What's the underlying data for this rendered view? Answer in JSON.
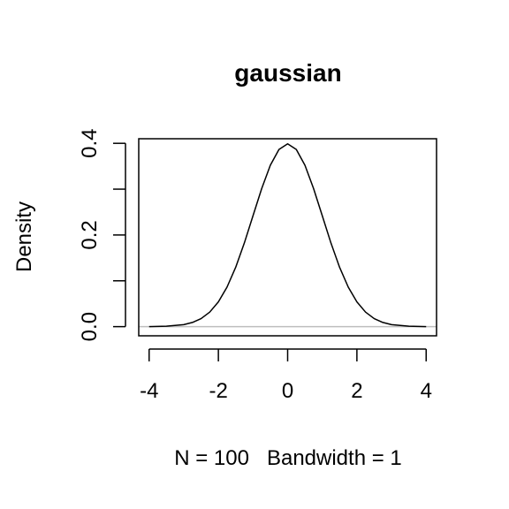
{
  "chart_data": {
    "type": "line",
    "title": "gaussian",
    "xlabel": "N = 100   Bandwidth = 1",
    "ylabel": "Density",
    "xlim": [
      -4.3,
      4.3
    ],
    "ylim": [
      -0.02,
      0.41
    ],
    "x_ticks": [
      -4,
      -2,
      0,
      2,
      4
    ],
    "x_tick_labels": [
      "-4",
      "-2",
      "0",
      "2",
      "4"
    ],
    "y_ticks": [
      0.0,
      0.1,
      0.2,
      0.3,
      0.4
    ],
    "y_tick_labels": [
      "0.0",
      "",
      "0.2",
      "",
      "0.4"
    ],
    "zero_line_color": "#bebebe",
    "line_color": "#000000",
    "grid": false,
    "series": [
      {
        "name": "",
        "x": [
          -4,
          -3.5,
          -3,
          -2.75,
          -2.5,
          -2.25,
          -2,
          -1.75,
          -1.5,
          -1.25,
          -1,
          -0.75,
          -0.5,
          -0.25,
          0,
          0.25,
          0.5,
          0.75,
          1,
          1.25,
          1.5,
          1.75,
          2,
          2.25,
          2.5,
          2.75,
          3,
          3.5,
          4
        ],
        "y": [
          0.0001,
          0.0009,
          0.0044,
          0.0091,
          0.0175,
          0.0317,
          0.054,
          0.0863,
          0.1295,
          0.1826,
          0.242,
          0.3011,
          0.3521,
          0.3867,
          0.3989,
          0.3867,
          0.3521,
          0.3011,
          0.242,
          0.1826,
          0.1295,
          0.0863,
          0.054,
          0.0317,
          0.0175,
          0.0091,
          0.0044,
          0.0009,
          0.0001
        ]
      }
    ]
  }
}
